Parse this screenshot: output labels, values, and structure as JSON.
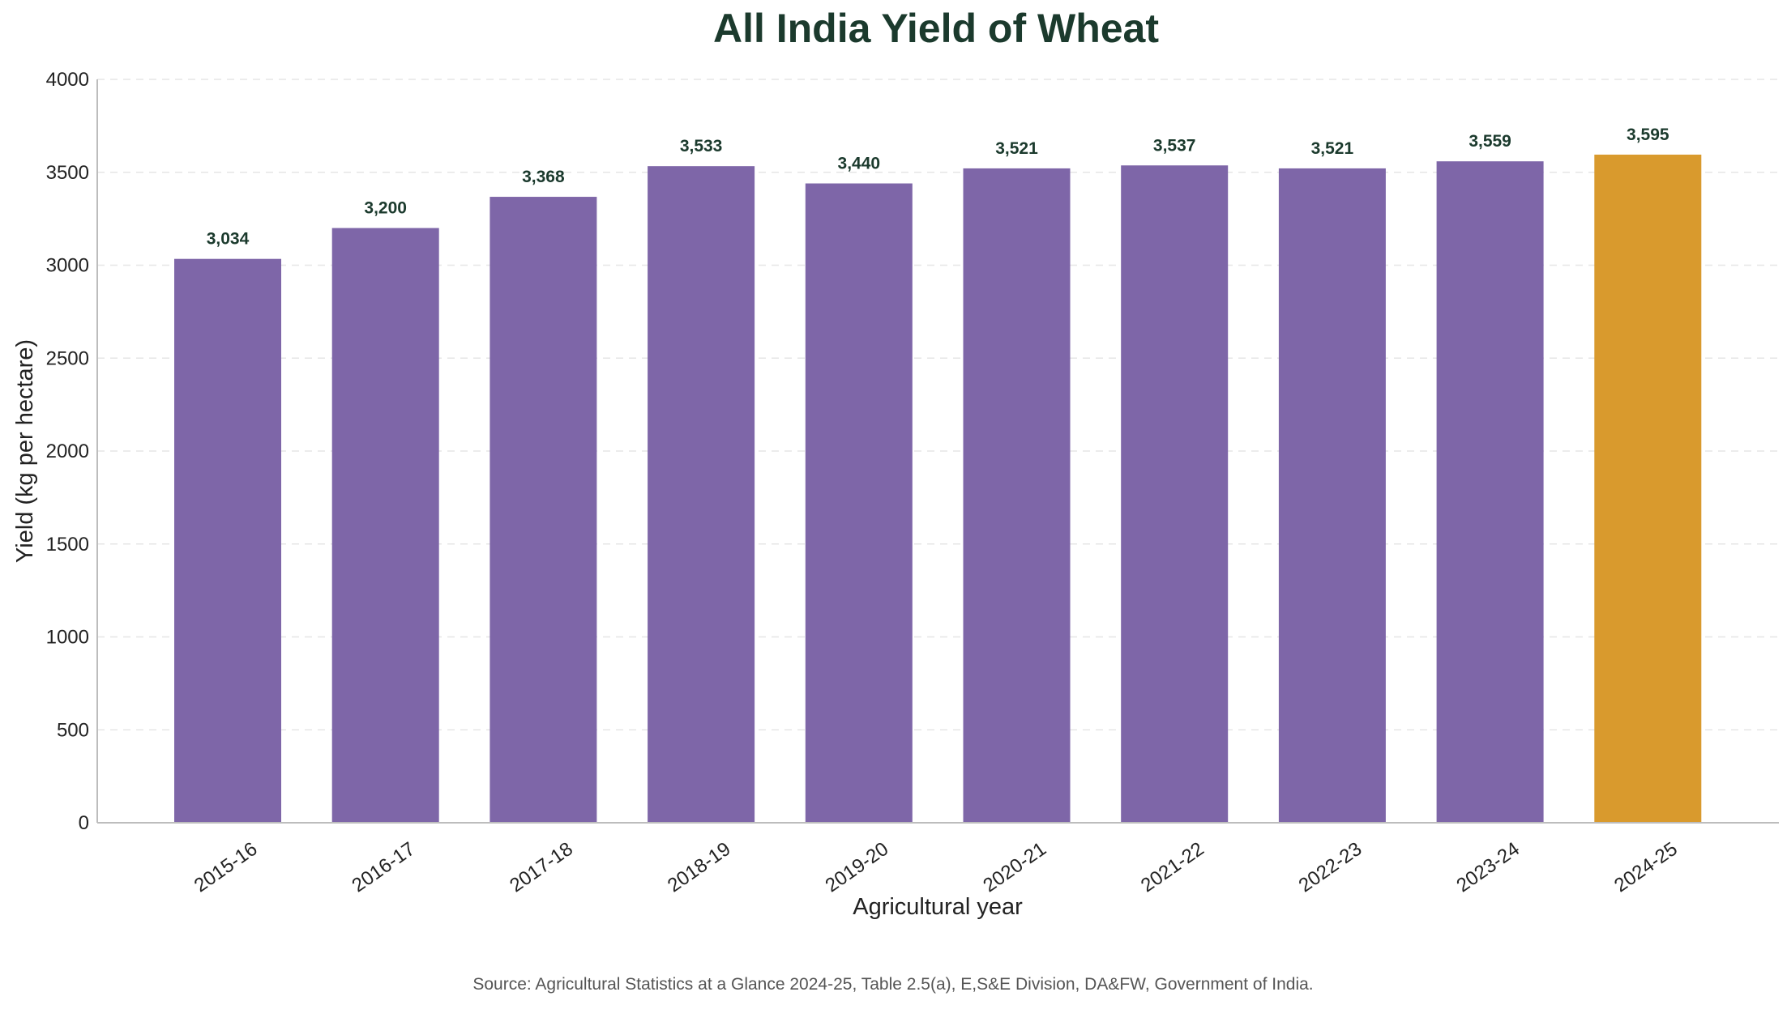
{
  "chart_data": {
    "type": "bar",
    "title": "All India Yield of Wheat",
    "xlabel": "Agricultural year",
    "ylabel": "Yield (kg per hectare)",
    "categories": [
      "2015-16",
      "2016-17",
      "2017-18",
      "2018-19",
      "2019-20",
      "2020-21",
      "2021-22",
      "2022-23",
      "2023-24",
      "2024-25"
    ],
    "values": [
      3034,
      3200,
      3368,
      3533,
      3440,
      3521,
      3537,
      3521,
      3559,
      3595
    ],
    "value_labels": [
      "3,034",
      "3,200",
      "3,368",
      "3,533",
      "3,440",
      "3,521",
      "3,537",
      "3,521",
      "3,559",
      "3,595"
    ],
    "ylim": [
      0,
      4000
    ],
    "yticks": [
      0,
      500,
      1000,
      1500,
      2000,
      2500,
      3000,
      3500,
      4000
    ],
    "grid": true,
    "colors": {
      "default": "#7e66a8",
      "highlight": "#d99a2d"
    },
    "highlight_category": "2024-25",
    "source": "Source: Agricultural Statistics at a Glance 2024-25, Table 2.5(a), E,S&E Division, DA&FW, Government of India."
  }
}
